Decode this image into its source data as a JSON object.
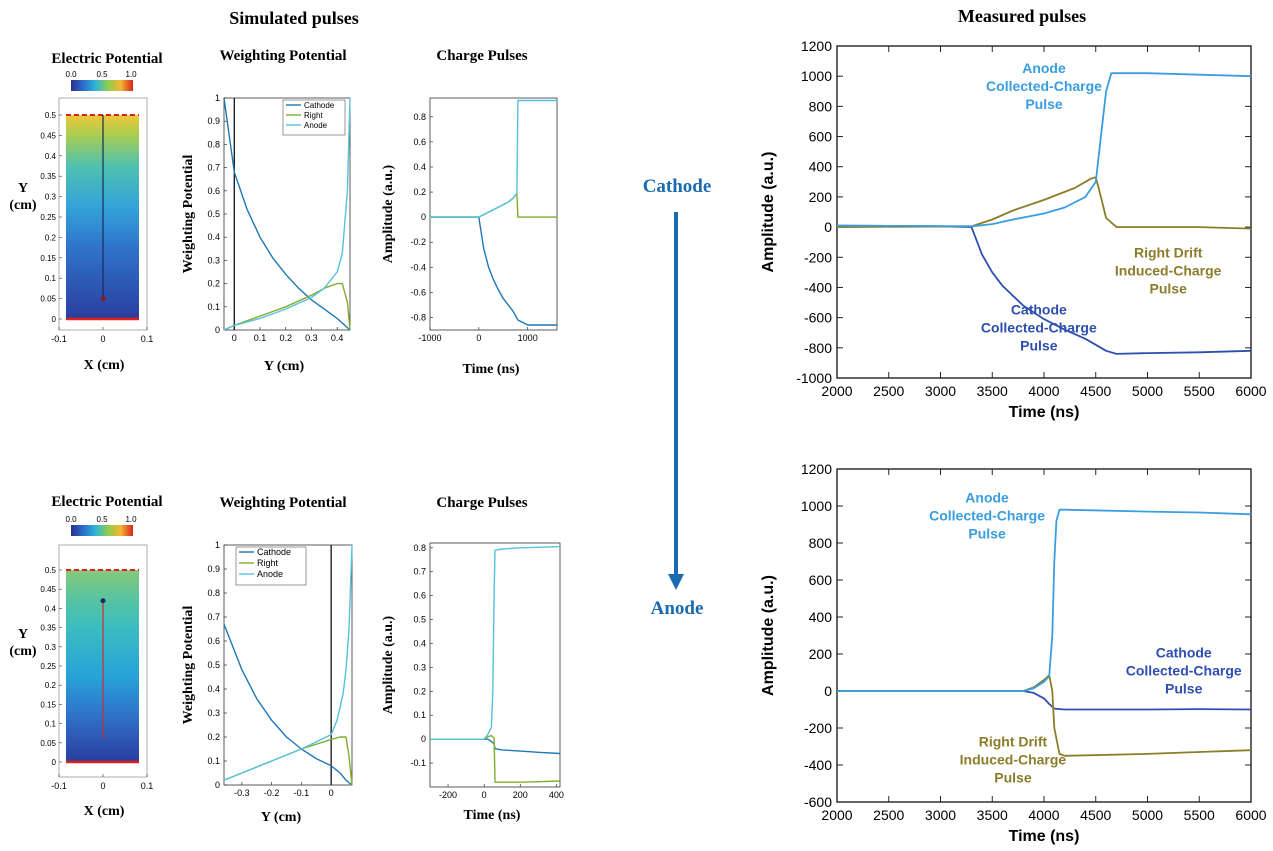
{
  "headers": {
    "simulated": "Simulated pulses",
    "measured": "Measured pulses"
  },
  "arrow": {
    "start_label": "Cathode",
    "end_label": "Anode",
    "color": "#1b6ab0"
  },
  "colorbar": {
    "ticks": [
      "0.0",
      "0.5",
      "1.0"
    ]
  },
  "colors": {
    "cathode_sim": "#1f77b4",
    "right_sim": "#7fae2e",
    "anode_sim": "#56c1e0",
    "cathode_meas": "#2f4fb0",
    "right_meas": "#8b7d2a",
    "anode_meas": "#3a9de0",
    "track": "#cc2222"
  },
  "simulated_rows": [
    {
      "potential": {
        "title": "Electric Potential",
        "xlabel": "X (cm)",
        "ylabel_line1": "Y",
        "ylabel_line2": "(cm)",
        "xticks": [
          "-0.1",
          "0",
          "0.1"
        ],
        "yticks": [
          "0",
          "0.05",
          "0.1",
          "0.15",
          "0.2",
          "0.25",
          "0.3",
          "0.35",
          "0.4",
          "0.45",
          "0.5"
        ],
        "track_from": 0.05,
        "track_to": 0.5
      },
      "weighting": {
        "title": "Weighting Potential",
        "xlabel": "Y (cm)",
        "ylabel": "Weighting Potential",
        "xticks": [
          "0",
          "0.1",
          "0.2",
          "0.3",
          "0.4"
        ],
        "yticks": [
          "0",
          "0.1",
          "0.2",
          "0.3",
          "0.4",
          "0.5",
          "0.6",
          "0.7",
          "0.8",
          "0.9",
          "1"
        ],
        "legend": [
          "Cathode",
          "Right",
          "Anode"
        ]
      },
      "charge": {
        "title": "Charge Pulses",
        "xlabel": "Time (ns)",
        "ylabel": "Amplitude (a.u.)",
        "xticks": [
          "-1000",
          "0",
          "1000"
        ],
        "yticks": [
          "-0.8",
          "-0.6",
          "-0.4",
          "-0.2",
          "0",
          "0.2",
          "0.4",
          "0.6",
          "0.8"
        ]
      }
    },
    {
      "potential": {
        "title": "Electric Potential",
        "xlabel": "X (cm)",
        "ylabel_line1": "Y",
        "ylabel_line2": "(cm)",
        "xticks": [
          "-0.1",
          "0",
          "0.1"
        ],
        "yticks": [
          "0",
          "0.05",
          "0.1",
          "0.15",
          "0.2",
          "0.25",
          "0.3",
          "0.35",
          "0.4",
          "0.45",
          "0.5"
        ],
        "track_from": 0.42,
        "track_to": 0.06
      },
      "weighting": {
        "title": "Weighting Potential",
        "xlabel": "Y (cm)",
        "ylabel": "Weighting Potential",
        "xticks": [
          "-0.3",
          "-0.2",
          "-0.1",
          "0"
        ],
        "yticks": [
          "0",
          "0.1",
          "0.2",
          "0.3",
          "0.4",
          "0.5",
          "0.6",
          "0.7",
          "0.8",
          "0.9",
          "1"
        ],
        "legend": [
          "Cathode",
          "Right",
          "Anode"
        ]
      },
      "charge": {
        "title": "Charge Pulses",
        "xlabel": "Time (ns)",
        "ylabel": "Amplitude (a.u.)",
        "xticks": [
          "-200",
          "0",
          "200",
          "400"
        ],
        "yticks": [
          "-0.1",
          "0",
          "0.1",
          "0.2",
          "0.3",
          "0.4",
          "0.5",
          "0.6",
          "0.7",
          "0.8"
        ]
      }
    }
  ],
  "chart_data": [
    {
      "type": "line",
      "title": "Weighting Potential",
      "xlabel": "Y (cm)",
      "ylabel": "Weighting Potential",
      "xlim": [
        -0.04,
        0.45
      ],
      "ylim": [
        0,
        1
      ],
      "marker_x": 0,
      "series": [
        {
          "name": "Cathode",
          "x": [
            -0.04,
            0.0,
            0.05,
            0.1,
            0.15,
            0.2,
            0.25,
            0.3,
            0.35,
            0.4,
            0.43,
            0.45
          ],
          "y": [
            1.0,
            0.68,
            0.52,
            0.4,
            0.31,
            0.24,
            0.18,
            0.13,
            0.09,
            0.05,
            0.02,
            0.0
          ]
        },
        {
          "name": "Right",
          "x": [
            -0.04,
            0.0,
            0.1,
            0.2,
            0.3,
            0.35,
            0.4,
            0.42,
            0.44,
            0.45
          ],
          "y": [
            0.0,
            0.02,
            0.06,
            0.1,
            0.15,
            0.18,
            0.2,
            0.2,
            0.12,
            0.0
          ]
        },
        {
          "name": "Anode",
          "x": [
            -0.04,
            0.0,
            0.1,
            0.2,
            0.3,
            0.35,
            0.4,
            0.42,
            0.44,
            0.45
          ],
          "y": [
            0.0,
            0.02,
            0.05,
            0.09,
            0.14,
            0.18,
            0.25,
            0.33,
            0.6,
            1.0
          ]
        }
      ]
    },
    {
      "type": "line",
      "title": "Charge Pulses",
      "xlabel": "Time (ns)",
      "ylabel": "Amplitude (a.u.)",
      "xlim": [
        -1000,
        1600
      ],
      "ylim": [
        -0.9,
        0.95
      ],
      "series": [
        {
          "name": "Cathode",
          "x": [
            -1000,
            0,
            100,
            200,
            300,
            400,
            500,
            600,
            700,
            800,
            900,
            1000,
            1600
          ],
          "y": [
            0,
            0,
            -0.25,
            -0.4,
            -0.5,
            -0.58,
            -0.65,
            -0.7,
            -0.75,
            -0.82,
            -0.84,
            -0.86,
            -0.86
          ]
        },
        {
          "name": "Right",
          "x": [
            -1000,
            0,
            100,
            200,
            300,
            400,
            500,
            600,
            700,
            780,
            800,
            1600
          ],
          "y": [
            0,
            0,
            0.02,
            0.04,
            0.06,
            0.08,
            0.1,
            0.12,
            0.15,
            0.19,
            0,
            0
          ]
        },
        {
          "name": "Anode",
          "x": [
            -1000,
            0,
            100,
            200,
            300,
            400,
            500,
            600,
            700,
            780,
            800,
            1600
          ],
          "y": [
            0,
            0,
            0.02,
            0.04,
            0.06,
            0.08,
            0.1,
            0.12,
            0.15,
            0.19,
            0.93,
            0.93
          ]
        }
      ]
    },
    {
      "type": "line",
      "title": "Weighting Potential",
      "xlabel": "Y (cm)",
      "ylabel": "Weighting Potential",
      "xlim": [
        -0.36,
        0.07
      ],
      "ylim": [
        0,
        1
      ],
      "marker_x": 0,
      "series": [
        {
          "name": "Cathode",
          "x": [
            -0.36,
            -0.3,
            -0.25,
            -0.2,
            -0.15,
            -0.1,
            -0.05,
            0.0,
            0.03,
            0.05,
            0.07
          ],
          "y": [
            0.67,
            0.48,
            0.36,
            0.27,
            0.2,
            0.15,
            0.11,
            0.08,
            0.05,
            0.02,
            0.0
          ]
        },
        {
          "name": "Right",
          "x": [
            -0.36,
            -0.3,
            -0.2,
            -0.1,
            0.0,
            0.03,
            0.05,
            0.06,
            0.07
          ],
          "y": [
            0.02,
            0.05,
            0.1,
            0.15,
            0.19,
            0.2,
            0.2,
            0.12,
            0.0
          ]
        },
        {
          "name": "Anode",
          "x": [
            -0.36,
            -0.3,
            -0.2,
            -0.1,
            0.0,
            0.02,
            0.04,
            0.05,
            0.06,
            0.07
          ],
          "y": [
            0.02,
            0.05,
            0.1,
            0.15,
            0.21,
            0.27,
            0.38,
            0.48,
            0.65,
            1.0
          ]
        }
      ]
    },
    {
      "type": "line",
      "title": "Charge Pulses",
      "xlabel": "Time (ns)",
      "ylabel": "Amplitude (a.u.)",
      "xlim": [
        -300,
        420
      ],
      "ylim": [
        -0.2,
        0.82
      ],
      "series": [
        {
          "name": "Cathode",
          "x": [
            -300,
            0,
            20,
            40,
            55,
            60,
            100,
            200,
            300,
            420
          ],
          "y": [
            0,
            0,
            0.0,
            -0.01,
            -0.02,
            -0.04,
            -0.045,
            -0.05,
            -0.055,
            -0.06
          ]
        },
        {
          "name": "Right",
          "x": [
            -300,
            0,
            20,
            40,
            55,
            60,
            100,
            200,
            300,
            420
          ],
          "y": [
            0,
            0,
            0.01,
            0.015,
            0.005,
            -0.18,
            -0.18,
            -0.18,
            -0.178,
            -0.175
          ]
        },
        {
          "name": "Anode",
          "x": [
            -300,
            0,
            20,
            40,
            48,
            55,
            60,
            100,
            200,
            300,
            420
          ],
          "y": [
            0,
            0,
            0.02,
            0.05,
            0.2,
            0.6,
            0.79,
            0.795,
            0.8,
            0.802,
            0.805
          ]
        }
      ]
    },
    {
      "type": "line",
      "xlabel": "Time (ns)",
      "ylabel": "Amplitude (a.u.)",
      "xlim": [
        2000,
        6000
      ],
      "ylim": [
        -1000,
        1200
      ],
      "xticks": [
        "2000",
        "2500",
        "3000",
        "3500",
        "4000",
        "4500",
        "5000",
        "5500",
        "6000"
      ],
      "yticks": [
        "-1000",
        "-800",
        "-600",
        "-400",
        "-200",
        "0",
        "200",
        "400",
        "600",
        "800",
        "1000",
        "1200"
      ],
      "annotations": [
        {
          "lines": [
            "Anode",
            "Collected-Charge",
            "Pulse"
          ],
          "series": "Anode",
          "x": 4000,
          "y": 1020
        },
        {
          "lines": [
            "Right Drift",
            "Induced-Charge",
            "Pulse"
          ],
          "series": "Right Drift",
          "x": 5200,
          "y": -200
        },
        {
          "lines": [
            "Cathode",
            "Collected-Charge",
            "Pulse"
          ],
          "series": "Cathode",
          "x": 3950,
          "y": -580
        }
      ],
      "series": [
        {
          "name": "Cathode",
          "x": [
            2000,
            3000,
            3300,
            3400,
            3500,
            3600,
            3800,
            4000,
            4200,
            4400,
            4600,
            4700,
            5000,
            5500,
            6000
          ],
          "y": [
            10,
            5,
            0,
            -180,
            -300,
            -390,
            -520,
            -610,
            -680,
            -740,
            -820,
            -840,
            -835,
            -830,
            -820
          ]
        },
        {
          "name": "Right Drift",
          "x": [
            2000,
            3300,
            3500,
            3700,
            4000,
            4300,
            4450,
            4500,
            4550,
            4600,
            4700,
            5000,
            5500,
            6000
          ],
          "y": [
            0,
            5,
            50,
            110,
            180,
            260,
            320,
            330,
            200,
            60,
            0,
            0,
            0,
            -10
          ]
        },
        {
          "name": "Anode",
          "x": [
            2000,
            3300,
            3500,
            3700,
            4000,
            4200,
            4400,
            4500,
            4550,
            4600,
            4650,
            5000,
            5500,
            6000
          ],
          "y": [
            10,
            5,
            20,
            50,
            90,
            130,
            200,
            300,
            600,
            900,
            1020,
            1020,
            1010,
            1000
          ]
        }
      ]
    },
    {
      "type": "line",
      "xlabel": "Time (ns)",
      "ylabel": "Amplitude (a.u.)",
      "xlim": [
        2000,
        6000
      ],
      "ylim": [
        -600,
        1200
      ],
      "xticks": [
        "2000",
        "2500",
        "3000",
        "3500",
        "4000",
        "4500",
        "5000",
        "5500",
        "6000"
      ],
      "yticks": [
        "-600",
        "-400",
        "-200",
        "0",
        "200",
        "400",
        "600",
        "800",
        "1000",
        "1200"
      ],
      "annotations": [
        {
          "lines": [
            "Anode",
            "Collected-Charge",
            "Pulse"
          ],
          "series": "Anode",
          "x": 3450,
          "y": 1020
        },
        {
          "lines": [
            "Cathode",
            "Collected-Charge",
            "Pulse"
          ],
          "series": "Cathode",
          "x": 5350,
          "y": 180
        },
        {
          "lines": [
            "Right Drift",
            "Induced-Charge",
            "Pulse"
          ],
          "series": "Right Drift",
          "x": 3700,
          "y": -300
        }
      ],
      "series": [
        {
          "name": "Cathode",
          "x": [
            2000,
            3500,
            3800,
            3900,
            4000,
            4050,
            4100,
            4200,
            5000,
            5500,
            6000
          ],
          "y": [
            0,
            0,
            0,
            -10,
            -40,
            -70,
            -95,
            -100,
            -100,
            -98,
            -100
          ]
        },
        {
          "name": "Right Drift",
          "x": [
            2000,
            3500,
            3800,
            3900,
            4000,
            4050,
            4080,
            4100,
            4150,
            4200,
            5000,
            5500,
            6000
          ],
          "y": [
            0,
            0,
            0,
            20,
            60,
            85,
            0,
            -200,
            -340,
            -350,
            -340,
            -330,
            -320
          ]
        },
        {
          "name": "Anode",
          "x": [
            2000,
            3500,
            3800,
            3900,
            4000,
            4050,
            4080,
            4100,
            4120,
            4150,
            4200,
            5000,
            5500,
            6000
          ],
          "y": [
            0,
            0,
            0,
            15,
            50,
            80,
            300,
            700,
            920,
            980,
            980,
            970,
            965,
            955
          ]
        }
      ]
    }
  ]
}
